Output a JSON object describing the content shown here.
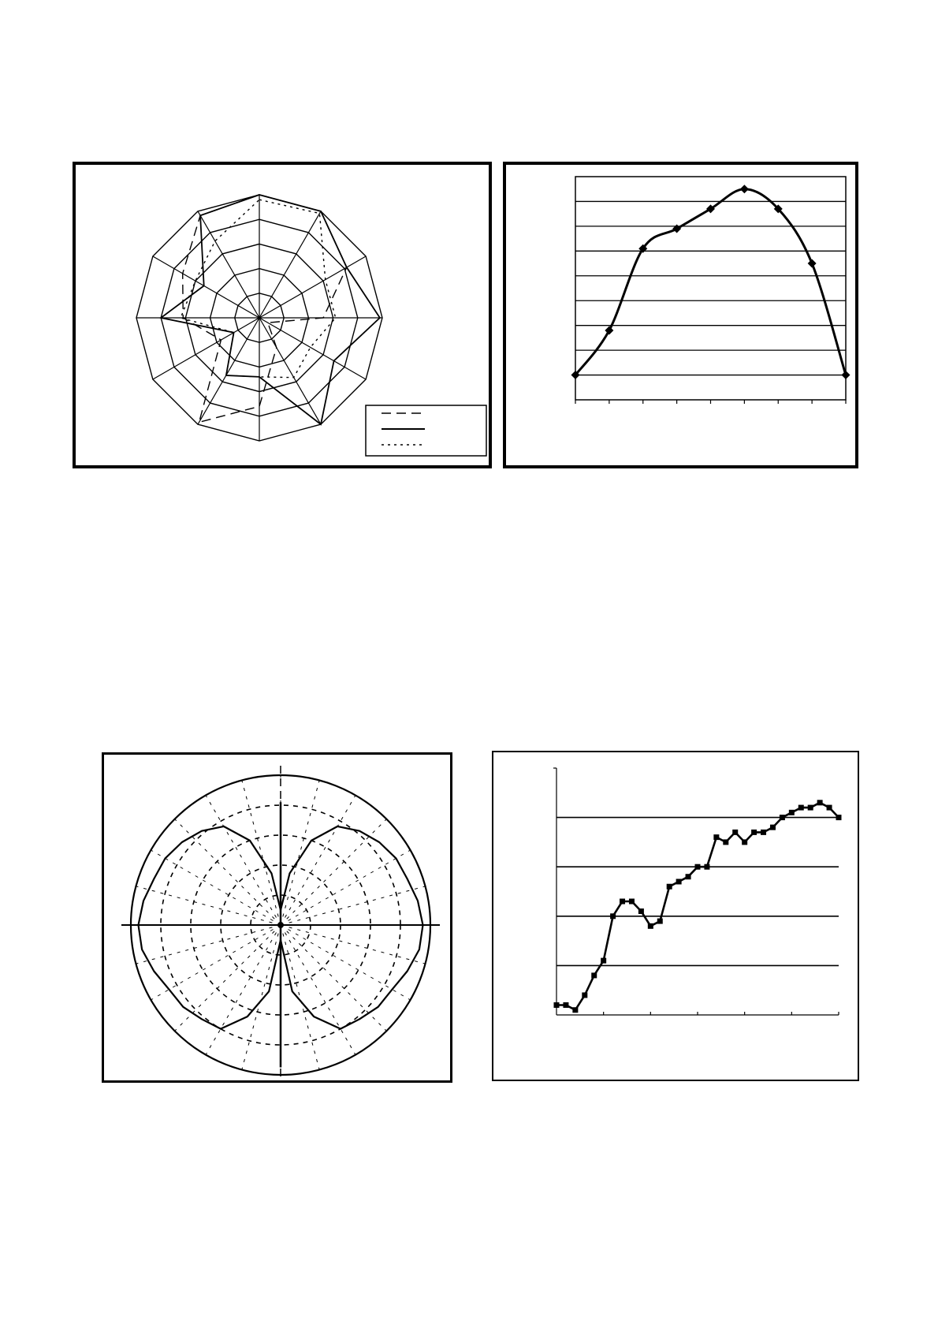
{
  "colors": {
    "ink": "#000000",
    "background": "#ffffff"
  },
  "chart_data": [
    {
      "type": "radar",
      "title": "",
      "spokes": 12,
      "rings": 5,
      "rmax": 5,
      "legend": {
        "placement": "bottom-right",
        "entries": [
          "",
          "",
          ""
        ],
        "styles": [
          "dashed",
          "solid",
          "dotted"
        ]
      },
      "series": [
        {
          "style": "dashed",
          "values": [
            5.0,
            5.0,
            4.1,
            2.6,
            0.4,
            1.4,
            3.6,
            4.9,
            1.8,
            3.1,
            3.6,
            4.8
          ]
        },
        {
          "style": "solid",
          "values": [
            5.0,
            5.0,
            4.1,
            4.9,
            3.5,
            5.0,
            2.4,
            2.7,
            1.2,
            4.0,
            2.6,
            4.8
          ]
        },
        {
          "style": "dotted",
          "values": [
            4.8,
            4.9,
            3.1,
            3.1,
            2.4,
            2.8,
            2.4,
            2.7,
            1.2,
            3.2,
            3.0,
            3.6
          ]
        }
      ]
    },
    {
      "type": "line",
      "title": "",
      "xlabel": "",
      "ylabel": "",
      "xlim": [
        0,
        8
      ],
      "ylim": [
        0,
        9
      ],
      "x_ticks": 8,
      "y_gridlines": 9,
      "grid": true,
      "marker": "diamond",
      "x": [
        0,
        1,
        2,
        3,
        4,
        5,
        6,
        7,
        8
      ],
      "y": [
        1.0,
        2.8,
        6.1,
        6.9,
        7.7,
        8.5,
        7.7,
        5.5,
        1.0
      ]
    },
    {
      "type": "polar",
      "title": "",
      "rmax": 10,
      "rings": [
        2,
        4,
        6,
        8,
        10
      ],
      "series": [
        {
          "style": "solid",
          "angles_deg": [
            0,
            10,
            20,
            30,
            40,
            50,
            60,
            70,
            80,
            90,
            100,
            110,
            120,
            130,
            140,
            150,
            160,
            170,
            180,
            190,
            200,
            210,
            220,
            230,
            240,
            250,
            260,
            270,
            280,
            290,
            300,
            310,
            320,
            330,
            340,
            350
          ],
          "r": [
            1.0,
            3.5,
            6.0,
            7.6,
            8.2,
            8.6,
            8.9,
            9.0,
            9.3,
            9.5,
            9.4,
            9.0,
            8.6,
            8.5,
            8.2,
            8.0,
            6.5,
            4.5,
            1.0,
            4.5,
            6.5,
            8.0,
            8.2,
            8.5,
            8.6,
            9.0,
            9.4,
            9.5,
            9.3,
            9.0,
            8.9,
            8.6,
            8.2,
            7.6,
            6.0,
            3.5
          ]
        },
        {
          "style": "solid-narrow",
          "angles_deg": [
            0,
            5,
            355,
            180,
            175,
            185
          ],
          "r": [
            8.2,
            6.0,
            6.0,
            9.5,
            7.0,
            7.0
          ]
        }
      ]
    },
    {
      "type": "line",
      "title": "",
      "xlabel": "",
      "ylabel": "",
      "xlim": [
        0,
        6
      ],
      "ylim": [
        0,
        5
      ],
      "y_gridlines": [
        1,
        2,
        3,
        4
      ],
      "x_ticks": 6,
      "grid": true,
      "marker": "square",
      "x": [
        0,
        0.2,
        0.4,
        0.6,
        0.8,
        1.0,
        1.2,
        1.4,
        1.6,
        1.8,
        2.0,
        2.2,
        2.4,
        2.6,
        2.8,
        3.0,
        3.2,
        3.4,
        3.6,
        3.8,
        4.0,
        4.2,
        4.4,
        4.6,
        4.8,
        5.0,
        5.2,
        5.4,
        5.6,
        5.8,
        6.0
      ],
      "y": [
        0.2,
        0.2,
        0.1,
        0.4,
        0.8,
        1.1,
        2.0,
        2.3,
        2.3,
        2.1,
        1.8,
        1.9,
        2.6,
        2.7,
        2.8,
        3.0,
        3.0,
        3.6,
        3.5,
        3.7,
        3.5,
        3.7,
        3.7,
        3.8,
        4.0,
        4.1,
        4.2,
        4.2,
        4.3,
        4.2,
        4.0
      ]
    }
  ]
}
